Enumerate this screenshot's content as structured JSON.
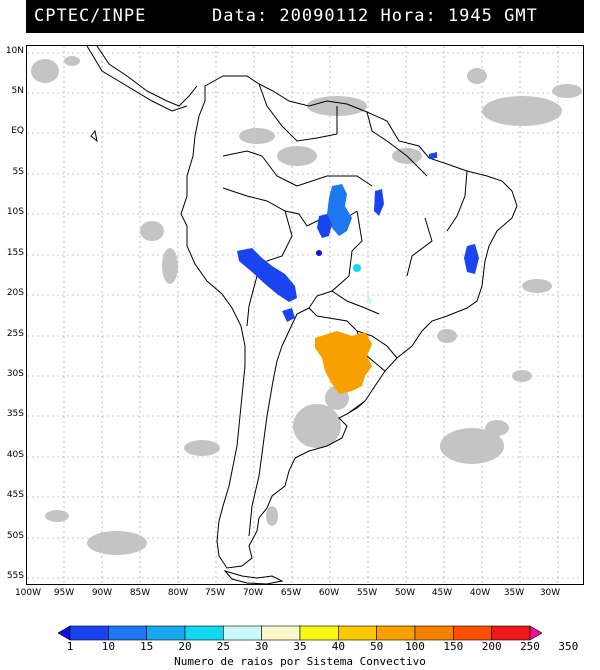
{
  "header": {
    "source": "CPTEC/INPE",
    "datetime": "Data: 20090112 Hora: 1945 GMT"
  },
  "map": {
    "lat_labels": [
      "10N",
      "5N",
      "EQ",
      "5S",
      "10S",
      "15S",
      "20S",
      "25S",
      "30S",
      "35S",
      "40S",
      "45S",
      "50S",
      "55S"
    ],
    "lon_labels": [
      "100W",
      "95W",
      "90W",
      "85W",
      "80W",
      "75W",
      "70W",
      "65W",
      "60W",
      "55W",
      "50W",
      "45W",
      "40W",
      "35W",
      "30W"
    ],
    "cloud_color": "#c0c0c0",
    "border_color": "#000000"
  },
  "legend": {
    "title": "Numero de raios por Sistema Convectivo",
    "ticks": [
      "1",
      "10",
      "15",
      "20",
      "25",
      "30",
      "35",
      "40",
      "50",
      "100",
      "150",
      "200",
      "250",
      "350"
    ],
    "colors": [
      "#1010e0",
      "#1a44f0",
      "#1e78f0",
      "#18a8f0",
      "#10d8f0",
      "#c8f8f8",
      "#f8f8c8",
      "#f8f810",
      "#f8c800",
      "#f8a000",
      "#f88000",
      "#f85000",
      "#f01818",
      "#f01098"
    ]
  }
}
